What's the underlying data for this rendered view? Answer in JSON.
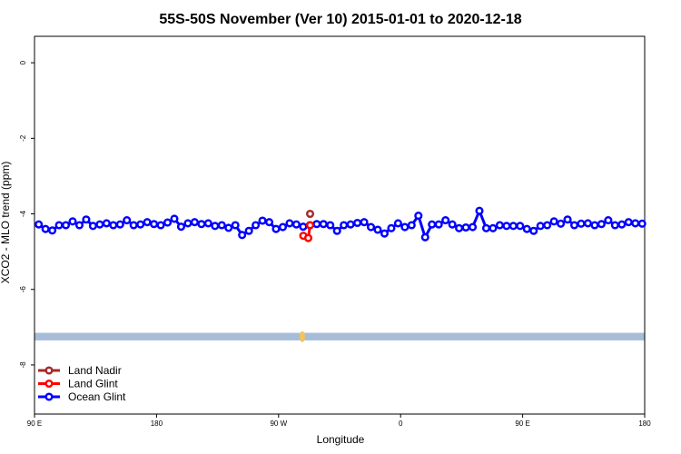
{
  "chart_data": {
    "type": "line",
    "title": "55S-50S November (Ver 10)   2015-01-01 to 2020-12-18",
    "xlabel": "Longitude",
    "ylabel": "XCO2 - MLO trend (ppm)",
    "xlim": [
      90,
      450
    ],
    "ylim": [
      -9.3,
      0.7
    ],
    "x_ticks": [
      {
        "value": 90,
        "label": "90 E"
      },
      {
        "value": 162,
        "label": "180"
      },
      {
        "value": 234,
        "label": "90 W"
      },
      {
        "value": 306,
        "label": "0"
      },
      {
        "value": 378,
        "label": "90 E"
      },
      {
        "value": 450,
        "label": "180"
      }
    ],
    "y_ticks": [
      {
        "value": 0,
        "label": "0"
      },
      {
        "value": -2,
        "label": "-2"
      },
      {
        "value": -4,
        "label": "-4"
      },
      {
        "value": -6,
        "label": "-6"
      },
      {
        "value": -8,
        "label": "-8"
      }
    ],
    "land_band": {
      "y_range": [
        -7.15,
        -7.35
      ],
      "color": "#a7bcd9"
    },
    "land_patch": {
      "x": 248,
      "y": -7.25,
      "color": "#f1c45c"
    },
    "legend_position": "bottom-left",
    "series": [
      {
        "name": "Land Nadir",
        "color": "#a52a2a",
        "x": [
          252.6
        ],
        "y": [
          -4.0
        ]
      },
      {
        "name": "Land Glint",
        "color": "#ff0000",
        "x": [
          248.6,
          251.5,
          252.6
        ],
        "y": [
          -4.58,
          -4.64,
          -4.3
        ]
      },
      {
        "name": "Ocean Glint",
        "color": "#0000ff",
        "x": [
          92.5,
          96.5,
          100.5,
          104.5,
          108.5,
          112.5,
          116.5,
          120.5,
          124.5,
          128.5,
          132.5,
          136.5,
          140.5,
          144.5,
          148.5,
          152.5,
          156.5,
          160.5,
          164.5,
          168.5,
          172.5,
          176.5,
          180.5,
          184.5,
          188.5,
          192.5,
          196.5,
          200.5,
          204.5,
          208.5,
          212.5,
          216.5,
          220.5,
          224.5,
          228.5,
          232.5,
          236.5,
          240.5,
          244.5,
          248.5,
          252.5,
          256.5,
          260.5,
          264.5,
          268.5,
          272.5,
          276.5,
          280.5,
          284.5,
          288.5,
          292.5,
          296.5,
          300.5,
          304.5,
          308.5,
          312.5,
          316.5,
          320.5,
          324.5,
          328.5,
          332.5,
          336.5,
          340.5,
          344.5,
          348.5,
          352.5,
          356.5,
          360.5,
          364.5,
          368.5,
          372.5,
          376.5,
          380.5,
          384.5,
          388.5,
          392.5,
          396.5,
          400.5,
          404.5,
          408.5,
          412.5,
          416.5,
          420.5,
          424.5,
          428.5,
          432.5,
          436.5,
          440.5,
          444.5,
          448.5
        ],
        "y": [
          -4.28,
          -4.4,
          -4.44,
          -4.3,
          -4.3,
          -4.2,
          -4.3,
          -4.15,
          -4.32,
          -4.28,
          -4.25,
          -4.3,
          -4.28,
          -4.17,
          -4.3,
          -4.28,
          -4.22,
          -4.27,
          -4.3,
          -4.23,
          -4.13,
          -4.34,
          -4.25,
          -4.22,
          -4.27,
          -4.25,
          -4.32,
          -4.3,
          -4.37,
          -4.3,
          -4.56,
          -4.45,
          -4.3,
          -4.18,
          -4.22,
          -4.4,
          -4.35,
          -4.25,
          -4.28,
          -4.34,
          -4.3,
          -4.27,
          -4.27,
          -4.3,
          -4.45,
          -4.3,
          -4.28,
          -4.24,
          -4.22,
          -4.35,
          -4.42,
          -4.52,
          -4.38,
          -4.25,
          -4.35,
          -4.3,
          -4.05,
          -4.62,
          -4.28,
          -4.28,
          -4.17,
          -4.28,
          -4.38,
          -4.36,
          -4.35,
          -3.92,
          -4.38,
          -4.38,
          -4.3,
          -4.32,
          -4.32,
          -4.32,
          -4.4,
          -4.45,
          -4.32,
          -4.3,
          -4.2,
          -4.26,
          -4.15,
          -4.3,
          -4.26,
          -4.25,
          -4.3,
          -4.27,
          -4.17,
          -4.3,
          -4.28,
          -4.22,
          -4.25,
          -4.26
        ]
      }
    ]
  }
}
